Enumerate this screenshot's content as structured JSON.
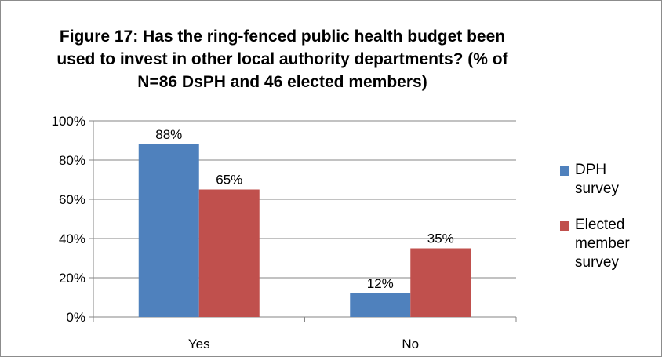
{
  "chart_data": {
    "type": "bar",
    "title": "Figure 17: Has the ring-fenced public health budget been used to invest in other local authority departments? (% of N=86 DsPH and 46 elected members)",
    "categories": [
      "Yes",
      "No"
    ],
    "series": [
      {
        "name": "DPH survey",
        "values": [
          88,
          12
        ],
        "labels": [
          "88%",
          "12%"
        ],
        "color": "#4f81bd"
      },
      {
        "name": "Elected member survey",
        "values": [
          65,
          35
        ],
        "labels": [
          "65%",
          "35%"
        ],
        "color": "#c0504d"
      }
    ],
    "yticks": [
      "0%",
      "20%",
      "40%",
      "60%",
      "80%",
      "100%"
    ],
    "ylim": [
      0,
      100
    ],
    "xlabel": "",
    "ylabel": "",
    "grid": true,
    "legend_position": "right"
  }
}
